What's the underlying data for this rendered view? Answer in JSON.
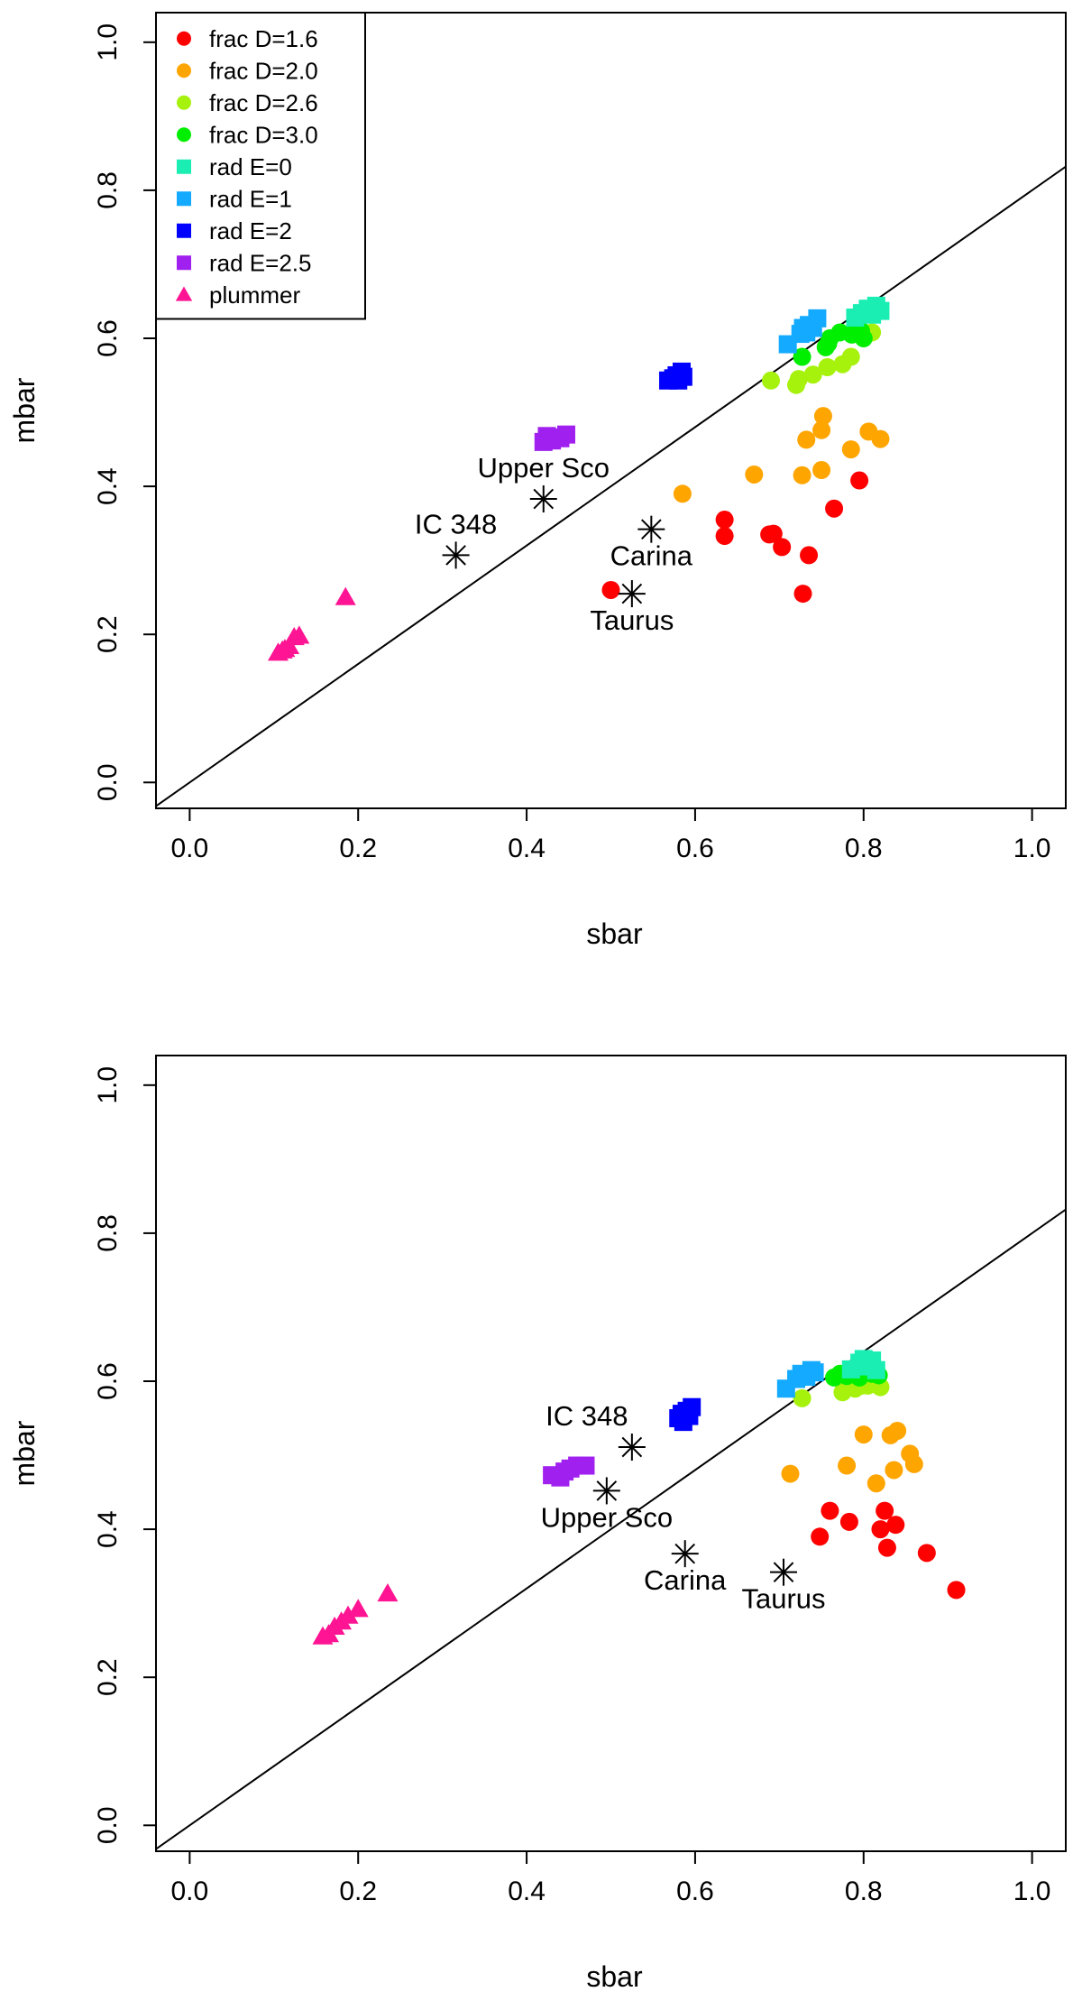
{
  "chart_data": [
    {
      "type": "scatter",
      "panel": "top",
      "xlabel": "sbar",
      "ylabel": "mbar",
      "xlim": [
        -0.04,
        1.04
      ],
      "ylim": [
        -0.035,
        1.04
      ],
      "xticks": [
        "0.0",
        "0.2",
        "0.4",
        "0.6",
        "0.8",
        "1.0"
      ],
      "yticks": [
        "0.0",
        "0.2",
        "0.4",
        "0.6",
        "0.8",
        "1.0"
      ],
      "legend_position": "top-left",
      "reference_line": {
        "x1": -0.04,
        "y1": -0.032,
        "x2": 1.04,
        "y2": 0.832
      },
      "series": [
        {
          "name": "frac D=1.6",
          "marker": "circle",
          "color": "#ff0000",
          "points": [
            [
              0.5,
              0.26
            ],
            [
              0.635,
              0.355
            ],
            [
              0.635,
              0.333
            ],
            [
              0.688,
              0.335
            ],
            [
              0.693,
              0.336
            ],
            [
              0.703,
              0.318
            ],
            [
              0.728,
              0.255
            ],
            [
              0.735,
              0.307
            ],
            [
              0.765,
              0.37
            ],
            [
              0.795,
              0.408
            ]
          ]
        },
        {
          "name": "frac D=2.0",
          "marker": "circle",
          "color": "#ffa500",
          "points": [
            [
              0.585,
              0.39
            ],
            [
              0.67,
              0.416
            ],
            [
              0.727,
              0.415
            ],
            [
              0.732,
              0.463
            ],
            [
              0.75,
              0.476
            ],
            [
              0.752,
              0.495
            ],
            [
              0.75,
              0.422
            ],
            [
              0.785,
              0.45
            ],
            [
              0.806,
              0.474
            ],
            [
              0.82,
              0.464
            ]
          ]
        },
        {
          "name": "frac D=2.6",
          "marker": "circle",
          "color": "#a6f20c",
          "points": [
            [
              0.69,
              0.543
            ],
            [
              0.72,
              0.537
            ],
            [
              0.723,
              0.545
            ],
            [
              0.74,
              0.551
            ],
            [
              0.757,
              0.561
            ],
            [
              0.775,
              0.565
            ],
            [
              0.785,
              0.575
            ],
            [
              0.81,
              0.608
            ]
          ]
        },
        {
          "name": "frac D=3.0",
          "marker": "circle",
          "color": "#00ee00",
          "points": [
            [
              0.727,
              0.575
            ],
            [
              0.755,
              0.588
            ],
            [
              0.758,
              0.593
            ],
            [
              0.76,
              0.6
            ],
            [
              0.772,
              0.608
            ],
            [
              0.786,
              0.605
            ],
            [
              0.797,
              0.61
            ],
            [
              0.8,
              0.6
            ]
          ]
        },
        {
          "name": "rad E=0",
          "marker": "square",
          "color": "#1aeeb3",
          "points": [
            [
              0.79,
              0.628
            ],
            [
              0.798,
              0.634
            ],
            [
              0.805,
              0.64
            ],
            [
              0.81,
              0.632
            ],
            [
              0.815,
              0.644
            ],
            [
              0.82,
              0.637
            ]
          ]
        },
        {
          "name": "rad E=1",
          "marker": "square",
          "color": "#14aaff",
          "points": [
            [
              0.71,
              0.592
            ],
            [
              0.725,
              0.606
            ],
            [
              0.728,
              0.614
            ],
            [
              0.732,
              0.608
            ],
            [
              0.735,
              0.618
            ],
            [
              0.74,
              0.614
            ],
            [
              0.745,
              0.627
            ]
          ]
        },
        {
          "name": "rad E=2",
          "marker": "square",
          "color": "#0000ff",
          "points": [
            [
              0.568,
              0.543
            ],
            [
              0.574,
              0.546
            ],
            [
              0.578,
              0.55
            ],
            [
              0.58,
              0.543
            ],
            [
              0.584,
              0.555
            ],
            [
              0.586,
              0.548
            ]
          ]
        },
        {
          "name": "rad E=2.5",
          "marker": "square",
          "color": "#a020f0",
          "points": [
            [
              0.42,
              0.46
            ],
            [
              0.424,
              0.468
            ],
            [
              0.43,
              0.462
            ],
            [
              0.434,
              0.466
            ],
            [
              0.44,
              0.465
            ],
            [
              0.447,
              0.47
            ]
          ]
        },
        {
          "name": "plummer",
          "marker": "triangle",
          "color": "#ff1493",
          "points": [
            [
              0.105,
              0.175
            ],
            [
              0.11,
              0.178
            ],
            [
              0.113,
              0.18
            ],
            [
              0.118,
              0.184
            ],
            [
              0.124,
              0.196
            ],
            [
              0.13,
              0.198
            ],
            [
              0.185,
              0.25
            ]
          ]
        }
      ],
      "annotations": [
        {
          "label": "Upper Sco",
          "x": 0.42,
          "y": 0.383,
          "label_side": "above"
        },
        {
          "label": "IC 348",
          "x": 0.316,
          "y": 0.307,
          "label_side": "above"
        },
        {
          "label": "Carina",
          "x": 0.548,
          "y": 0.342,
          "label_side": "below"
        },
        {
          "label": "Taurus",
          "x": 0.525,
          "y": 0.255,
          "label_side": "below"
        }
      ]
    },
    {
      "type": "scatter",
      "panel": "bottom",
      "xlabel": "sbar",
      "ylabel": "mbar",
      "xlim": [
        -0.04,
        1.04
      ],
      "ylim": [
        -0.035,
        1.04
      ],
      "xticks": [
        "0.0",
        "0.2",
        "0.4",
        "0.6",
        "0.8",
        "1.0"
      ],
      "yticks": [
        "0.0",
        "0.2",
        "0.4",
        "0.6",
        "0.8",
        "1.0"
      ],
      "reference_line": {
        "x1": -0.04,
        "y1": -0.032,
        "x2": 1.04,
        "y2": 0.832
      },
      "series": [
        {
          "name": "frac D=1.6",
          "marker": "circle",
          "color": "#ff0000",
          "points": [
            [
              0.748,
              0.39
            ],
            [
              0.76,
              0.425
            ],
            [
              0.783,
              0.41
            ],
            [
              0.82,
              0.4
            ],
            [
              0.825,
              0.425
            ],
            [
              0.828,
              0.375
            ],
            [
              0.838,
              0.406
            ],
            [
              0.875,
              0.368
            ],
            [
              0.91,
              0.318
            ]
          ]
        },
        {
          "name": "frac D=2.0",
          "marker": "circle",
          "color": "#ffa500",
          "points": [
            [
              0.713,
              0.475
            ],
            [
              0.78,
              0.486
            ],
            [
              0.8,
              0.528
            ],
            [
              0.815,
              0.462
            ],
            [
              0.832,
              0.527
            ],
            [
              0.836,
              0.48
            ],
            [
              0.84,
              0.533
            ],
            [
              0.855,
              0.502
            ],
            [
              0.86,
              0.488
            ]
          ]
        },
        {
          "name": "frac D=2.6",
          "marker": "circle",
          "color": "#a6f20c",
          "points": [
            [
              0.727,
              0.577
            ],
            [
              0.775,
              0.585
            ],
            [
              0.79,
              0.59
            ],
            [
              0.798,
              0.594
            ],
            [
              0.805,
              0.594
            ],
            [
              0.815,
              0.596
            ],
            [
              0.82,
              0.592
            ]
          ]
        },
        {
          "name": "frac D=3.0",
          "marker": "circle",
          "color": "#00ee00",
          "points": [
            [
              0.765,
              0.605
            ],
            [
              0.772,
              0.61
            ],
            [
              0.78,
              0.607
            ],
            [
              0.795,
              0.605
            ],
            [
              0.81,
              0.61
            ],
            [
              0.818,
              0.608
            ]
          ]
        },
        {
          "name": "rad E=0",
          "marker": "square",
          "color": "#1aeeb3",
          "points": [
            [
              0.785,
              0.616
            ],
            [
              0.795,
              0.625
            ],
            [
              0.8,
              0.63
            ],
            [
              0.805,
              0.62
            ],
            [
              0.81,
              0.628
            ],
            [
              0.815,
              0.615
            ]
          ]
        },
        {
          "name": "rad E=1",
          "marker": "square",
          "color": "#14aaff",
          "points": [
            [
              0.708,
              0.59
            ],
            [
              0.72,
              0.603
            ],
            [
              0.726,
              0.61
            ],
            [
              0.732,
              0.606
            ],
            [
              0.738,
              0.615
            ],
            [
              0.742,
              0.612
            ]
          ]
        },
        {
          "name": "rad E=2",
          "marker": "square",
          "color": "#0000ff",
          "points": [
            [
              0.58,
              0.55
            ],
            [
              0.584,
              0.556
            ],
            [
              0.586,
              0.545
            ],
            [
              0.59,
              0.56
            ],
            [
              0.593,
              0.553
            ],
            [
              0.596,
              0.565
            ]
          ]
        },
        {
          "name": "rad E=2.5",
          "marker": "square",
          "color": "#a020f0",
          "points": [
            [
              0.43,
              0.473
            ],
            [
              0.44,
              0.47
            ],
            [
              0.445,
              0.478
            ],
            [
              0.452,
              0.482
            ],
            [
              0.46,
              0.486
            ],
            [
              0.47,
              0.486
            ]
          ]
        },
        {
          "name": "plummer",
          "marker": "triangle",
          "color": "#ff1493",
          "points": [
            [
              0.158,
              0.255
            ],
            [
              0.165,
              0.258
            ],
            [
              0.172,
              0.268
            ],
            [
              0.18,
              0.275
            ],
            [
              0.188,
              0.283
            ],
            [
              0.2,
              0.292
            ],
            [
              0.235,
              0.313
            ]
          ]
        }
      ],
      "annotations": [
        {
          "label": "IC 348",
          "x": 0.525,
          "y": 0.511,
          "label_side": "above-left"
        },
        {
          "label": "Upper Sco",
          "x": 0.495,
          "y": 0.452,
          "label_side": "below"
        },
        {
          "label": "Carina",
          "x": 0.588,
          "y": 0.367,
          "label_side": "below"
        },
        {
          "label": "Taurus",
          "x": 0.705,
          "y": 0.342,
          "label_side": "below"
        }
      ]
    }
  ]
}
